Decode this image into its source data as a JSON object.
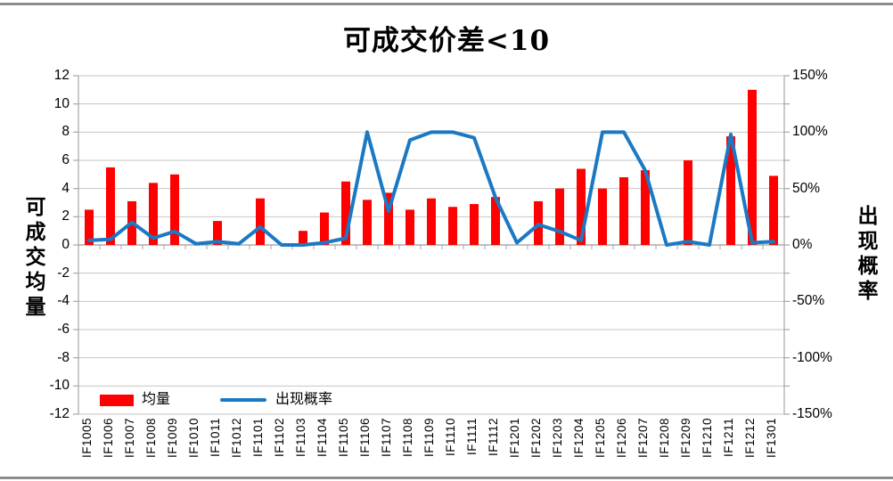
{
  "chart_data": {
    "type": "bar+line combo",
    "title": "可成交价差<10",
    "categories": [
      "IF1005",
      "IF1006",
      "IF1007",
      "IF1008",
      "IF1009",
      "IF1010",
      "IF1011",
      "IF1012",
      "IF1101",
      "IF1102",
      "IF1103",
      "IF1104",
      "IF1105",
      "IF1106",
      "IF1107",
      "IF1108",
      "IF1109",
      "IF1110",
      "IF1111",
      "IF1112",
      "IF1201",
      "IF1202",
      "IF1203",
      "IF1204",
      "IF1205",
      "IF1206",
      "IF1207",
      "IF1208",
      "IF1209",
      "IF1210",
      "IF1211",
      "IF1212",
      "IF1301"
    ],
    "series": [
      {
        "name": "均量",
        "type": "bar",
        "axis": "left",
        "color": "#FF0000",
        "values": [
          2.5,
          5.5,
          3.1,
          4.4,
          5.0,
          0,
          1.7,
          0,
          3.3,
          0,
          1.0,
          2.3,
          4.5,
          3.2,
          3.7,
          2.5,
          3.3,
          2.7,
          2.9,
          3.4,
          0,
          3.1,
          4.0,
          5.4,
          4.0,
          4.8,
          5.3,
          0,
          6.0,
          0,
          7.7,
          11.0,
          4.9
        ]
      },
      {
        "name": "出现概率",
        "type": "line",
        "axis": "right",
        "color": "#1B79C4",
        "unit": "%",
        "values": [
          4,
          5,
          20,
          6,
          12,
          1,
          3,
          1,
          16,
          0,
          0,
          2,
          6,
          100,
          30,
          93,
          100,
          100,
          95,
          42,
          2,
          18,
          12,
          4,
          100,
          100,
          66,
          0,
          3,
          0,
          98,
          2,
          3
        ]
      }
    ],
    "left_axis": {
      "title": "可成交均量",
      "min": -12,
      "max": 12,
      "step": 2,
      "tick_labels": [
        "12",
        "10",
        "8",
        "6",
        "4",
        "2",
        "0",
        "-2",
        "-4",
        "-6",
        "-8",
        "-10",
        "-12"
      ]
    },
    "right_axis": {
      "title": "出现概率",
      "min": -150,
      "max": 150,
      "step": 50,
      "tick_labels": [
        "150%",
        "100%",
        "50%",
        "0%",
        "-50%",
        "-100%",
        "-150%"
      ]
    },
    "legend": {
      "position": "bottom-left",
      "entries": [
        "均量",
        "出现概率"
      ]
    },
    "grid": true
  },
  "colors": {
    "bar": "#FF0000",
    "line": "#1B79C4",
    "gridline": "#C6C6C6",
    "zero_line": "#9B9B9B",
    "axis_line": "#A6A6A6",
    "window_border": "#8C8C8C"
  }
}
